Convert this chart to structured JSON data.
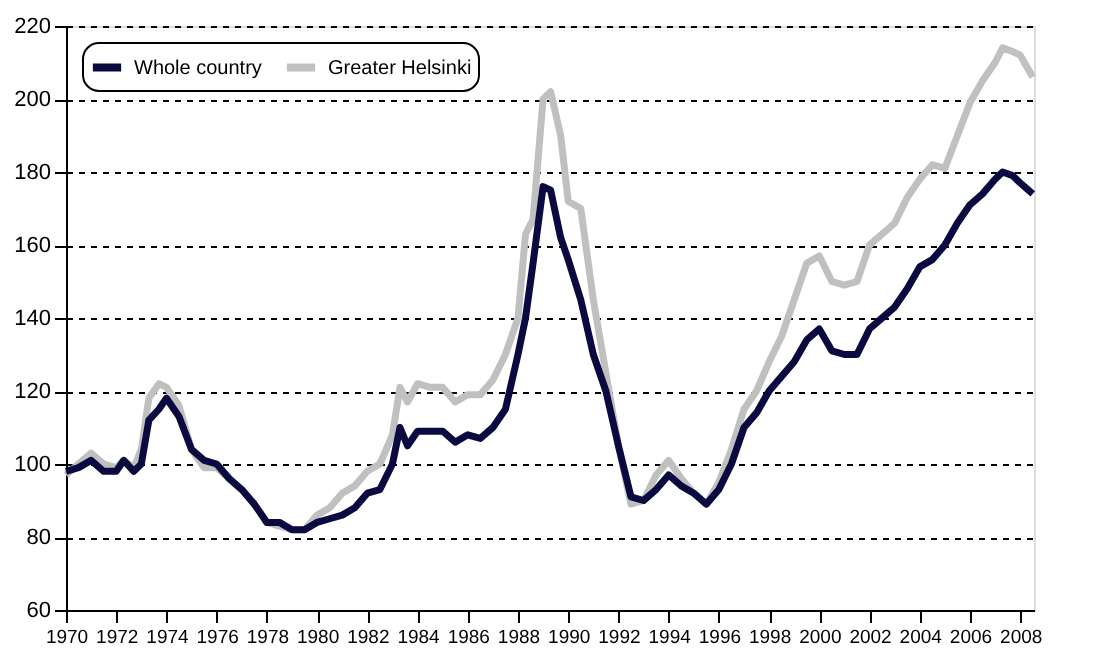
{
  "chart_data": {
    "type": "line",
    "xlim": [
      1970,
      2008.55
    ],
    "xticks": [
      1970,
      1972,
      1974,
      1976,
      1978,
      1980,
      1982,
      1984,
      1986,
      1988,
      1990,
      1992,
      1994,
      1996,
      1998,
      2000,
      2002,
      2004,
      2006,
      2008
    ],
    "ylim": [
      60,
      220
    ],
    "yticks": [
      60,
      80,
      100,
      120,
      140,
      160,
      180,
      200,
      220
    ],
    "grid": "y",
    "legend": "top left",
    "marker": "none",
    "line_style": "solid",
    "x": [
      1970.0,
      1970.5,
      1971.0,
      1971.5,
      1972.0,
      1972.3,
      1972.7,
      1973.0,
      1973.3,
      1973.7,
      1974.0,
      1974.5,
      1975.0,
      1975.5,
      1976.0,
      1976.5,
      1977.0,
      1977.5,
      1978.0,
      1978.5,
      1979.0,
      1979.5,
      1980.0,
      1980.5,
      1981.0,
      1981.5,
      1982.0,
      1982.5,
      1983.0,
      1983.3,
      1983.6,
      1984.0,
      1984.5,
      1985.0,
      1985.5,
      1986.0,
      1986.5,
      1987.0,
      1987.5,
      1988.0,
      1988.3,
      1988.6,
      1989.0,
      1989.3,
      1989.7,
      1990.0,
      1990.5,
      1991.0,
      1991.5,
      1992.0,
      1992.5,
      1993.0,
      1993.5,
      1994.0,
      1994.5,
      1995.0,
      1995.5,
      1996.0,
      1996.5,
      1997.0,
      1997.5,
      1998.0,
      1998.5,
      1999.0,
      1999.5,
      2000.0,
      2000.5,
      2001.0,
      2001.5,
      2002.0,
      2002.5,
      2003.0,
      2003.5,
      2004.0,
      2004.5,
      2005.0,
      2005.5,
      2006.0,
      2006.5,
      2007.0,
      2007.3,
      2007.7,
      2008.0,
      2008.5
    ],
    "series": [
      {
        "name": "Whole country",
        "color": "#0a0a40",
        "values": [
          98,
          99,
          101,
          98,
          98,
          101,
          98,
          100,
          112,
          115,
          118,
          113,
          104,
          101,
          100,
          96,
          93,
          89,
          84,
          84,
          82,
          82,
          84,
          85,
          86,
          88,
          92,
          93,
          100,
          110,
          105,
          109,
          109,
          109,
          106,
          108,
          107,
          110,
          115,
          130,
          140,
          155,
          176,
          175,
          162,
          156,
          145,
          130,
          120,
          105,
          91,
          90,
          93,
          97,
          94,
          92,
          89,
          93,
          100,
          110,
          114,
          120,
          124,
          128,
          134,
          137,
          131,
          130,
          130,
          137,
          140,
          143,
          148,
          154,
          156,
          160,
          166,
          171,
          174,
          178,
          180,
          179,
          177,
          174
        ]
      },
      {
        "name": "Greater Helsinki",
        "color": "#c0c0c0",
        "values": [
          97,
          100,
          103,
          100,
          99,
          101,
          99,
          104,
          118,
          122,
          121,
          116,
          104,
          99,
          99,
          96,
          93,
          89,
          84,
          83,
          82,
          82,
          86,
          88,
          92,
          94,
          98,
          100,
          108,
          121,
          117,
          122,
          121,
          121,
          117,
          119,
          119,
          123,
          130,
          140,
          163,
          167,
          200,
          202,
          190,
          172,
          170,
          145,
          125,
          105,
          89,
          90,
          97,
          101,
          96,
          92,
          89,
          95,
          104,
          115,
          120,
          128,
          135,
          145,
          155,
          157,
          150,
          149,
          150,
          160,
          163,
          166,
          173,
          178,
          182,
          181,
          190,
          199,
          205,
          210,
          214,
          213,
          212,
          206
        ]
      }
    ]
  }
}
